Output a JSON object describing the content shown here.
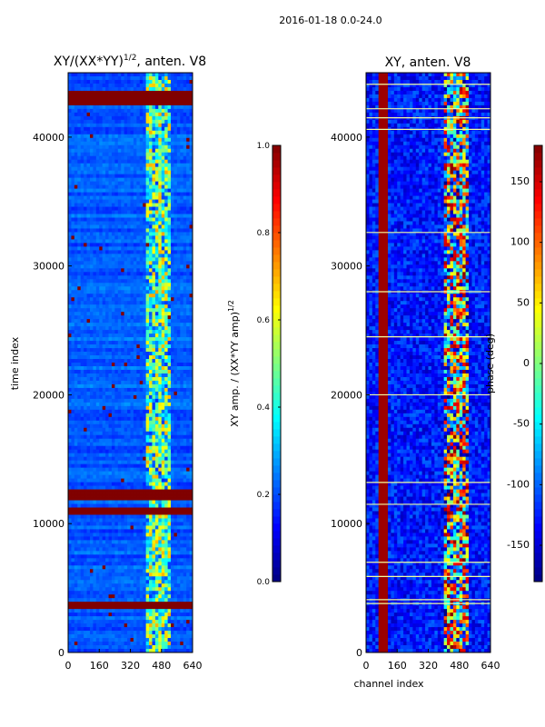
{
  "figure": {
    "suptitle": "2016-01-18 0.0-24.0"
  },
  "chart_data": [
    {
      "type": "heatmap",
      "title": "XY/(XX*YY)^1/2, anten. V8",
      "title_main": "XY/(XX*YY)",
      "title_sup": "1/2",
      "title_tail": ", anten. V8",
      "xlabel": "",
      "ylabel": "time index",
      "xlim": [
        0,
        640
      ],
      "ylim": [
        0,
        45000
      ],
      "xticks": [
        0,
        160,
        320,
        480,
        640
      ],
      "yticks": [
        0,
        10000,
        20000,
        30000,
        40000
      ],
      "colormap": "jet",
      "colorbar": {
        "label": "XY amp. / (XX*YY amp)^1/2",
        "label_main": "XY amp. / (XX*YY amp)",
        "label_sup": "1/2",
        "range": [
          0.0,
          1.0
        ],
        "ticks": [
          "0.0",
          "0.2",
          "0.4",
          "0.6",
          "0.8",
          "1.0"
        ]
      },
      "features": {
        "background_value": 0.15,
        "bright_channel_range": [
          400,
          530
        ],
        "bright_value": 0.55,
        "saturated_time_bands": [
          [
            3400,
            3900
          ],
          [
            10800,
            11200
          ],
          [
            11800,
            12600
          ],
          [
            42500,
            43500
          ]
        ]
      }
    },
    {
      "type": "heatmap",
      "title": "XY, anten. V8",
      "xlabel": "channel index",
      "ylabel": "",
      "xlim": [
        0,
        640
      ],
      "ylim": [
        0,
        45000
      ],
      "xticks": [
        0,
        160,
        320,
        480,
        640
      ],
      "yticks": [
        0,
        10000,
        20000,
        30000,
        40000
      ],
      "colormap": "jet",
      "colorbar": {
        "label": "phase (deg)",
        "range": [
          -180,
          180
        ],
        "ticks": [
          "-150",
          "-100",
          "-50",
          "0",
          "50",
          "100",
          "150"
        ]
      },
      "features": {
        "background_value": -140,
        "phase_line_channels": [
          80,
          110
        ],
        "bright_channel_range": [
          400,
          530
        ],
        "white_time_lines": [
          3800,
          4100,
          5900,
          7000,
          11500,
          13200,
          20000,
          24500,
          28000,
          32600,
          40600,
          41500,
          42200,
          44100
        ]
      }
    }
  ]
}
